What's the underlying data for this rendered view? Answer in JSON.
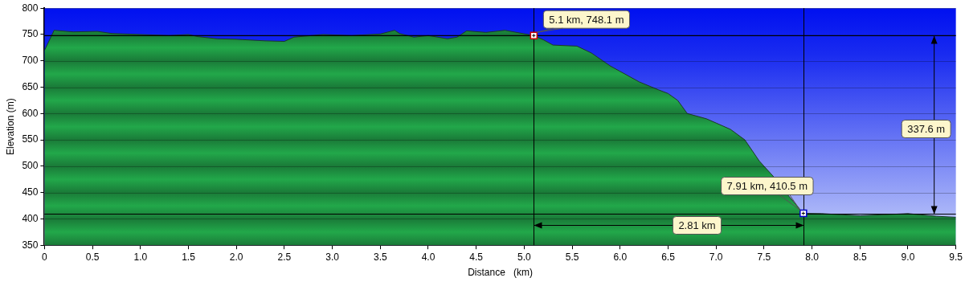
{
  "chart_data": {
    "type": "area",
    "xlabel": "Distance   (km)",
    "ylabel": "Elevation (m)",
    "x": [
      0,
      0.1,
      0.3,
      0.55,
      0.7,
      1.0,
      1.3,
      1.5,
      1.6,
      1.8,
      2.0,
      2.3,
      2.5,
      2.6,
      2.9,
      3.2,
      3.5,
      3.65,
      3.7,
      3.85,
      4.0,
      4.2,
      4.3,
      4.4,
      4.6,
      4.8,
      5.1,
      5.2,
      5.3,
      5.55,
      5.7,
      5.9,
      6.0,
      6.2,
      6.4,
      6.5,
      6.6,
      6.7,
      6.9,
      7.0,
      7.15,
      7.3,
      7.45,
      7.6,
      7.75,
      7.91,
      8.1,
      8.5,
      9.0,
      9.3,
      9.5
    ],
    "series": [
      {
        "color": "#22a84a",
        "values": [
          720,
          758,
          755,
          756,
          752,
          750,
          748,
          750,
          746,
          742,
          741,
          738,
          737,
          745,
          750,
          748,
          751,
          758,
          752,
          745,
          748,
          742,
          745,
          757,
          754,
          758,
          748.1,
          740,
          730,
          728,
          715,
          690,
          680,
          660,
          645,
          638,
          625,
          600,
          590,
          582,
          570,
          550,
          510,
          480,
          445,
          410.5,
          410,
          406,
          410,
          405,
          403
        ]
      }
    ],
    "xlim": [
      0,
      9.5
    ],
    "xticks": [
      0,
      {
        "value": 0.5,
        "label": "0.5"
      },
      {
        "value": 1,
        "label": "1.0"
      },
      {
        "value": 1.5,
        "label": "1.5"
      },
      {
        "value": 2,
        "label": "2.0"
      },
      {
        "value": 2.5,
        "label": "2.5"
      },
      {
        "value": 3,
        "label": "3.0"
      },
      {
        "value": 3.5,
        "label": "3.5"
      },
      {
        "value": 4,
        "label": "4.0"
      },
      {
        "value": 4.5,
        "label": "4.5"
      },
      {
        "value": 5,
        "label": "5.0"
      },
      {
        "value": 5.5,
        "label": "5.5"
      },
      {
        "value": 6,
        "label": "6.0"
      },
      {
        "value": 6.5,
        "label": "6.5"
      },
      {
        "value": 7,
        "label": "7.0"
      },
      {
        "value": 7.5,
        "label": "7.5"
      },
      {
        "value": 8,
        "label": "8.0"
      },
      {
        "value": 8.5,
        "label": "8.5"
      },
      {
        "value": 9,
        "label": "9.0"
      },
      {
        "value": 9.5,
        "label": "9.5"
      }
    ],
    "ylim": [
      350,
      800
    ],
    "yticks": [
      350,
      400,
      450,
      500,
      550,
      600,
      650,
      700,
      750,
      800
    ],
    "grid": "y",
    "legend": false,
    "marker": "none",
    "ref_lines": [
      {
        "axis": "x",
        "value": 5.1
      },
      {
        "axis": "x",
        "value": 7.91
      },
      {
        "axis": "y",
        "value": 748.1
      },
      {
        "axis": "y",
        "value": 410.5
      }
    ],
    "annotations": [
      {
        "text": "5.1 km, 748.1 m",
        "x": 5.1,
        "y": 748.1
      },
      {
        "text": "7.91 km, 410.5 m",
        "x": 7.91,
        "y": 410.5
      },
      "337.6 m",
      "2.81 km"
    ]
  }
}
